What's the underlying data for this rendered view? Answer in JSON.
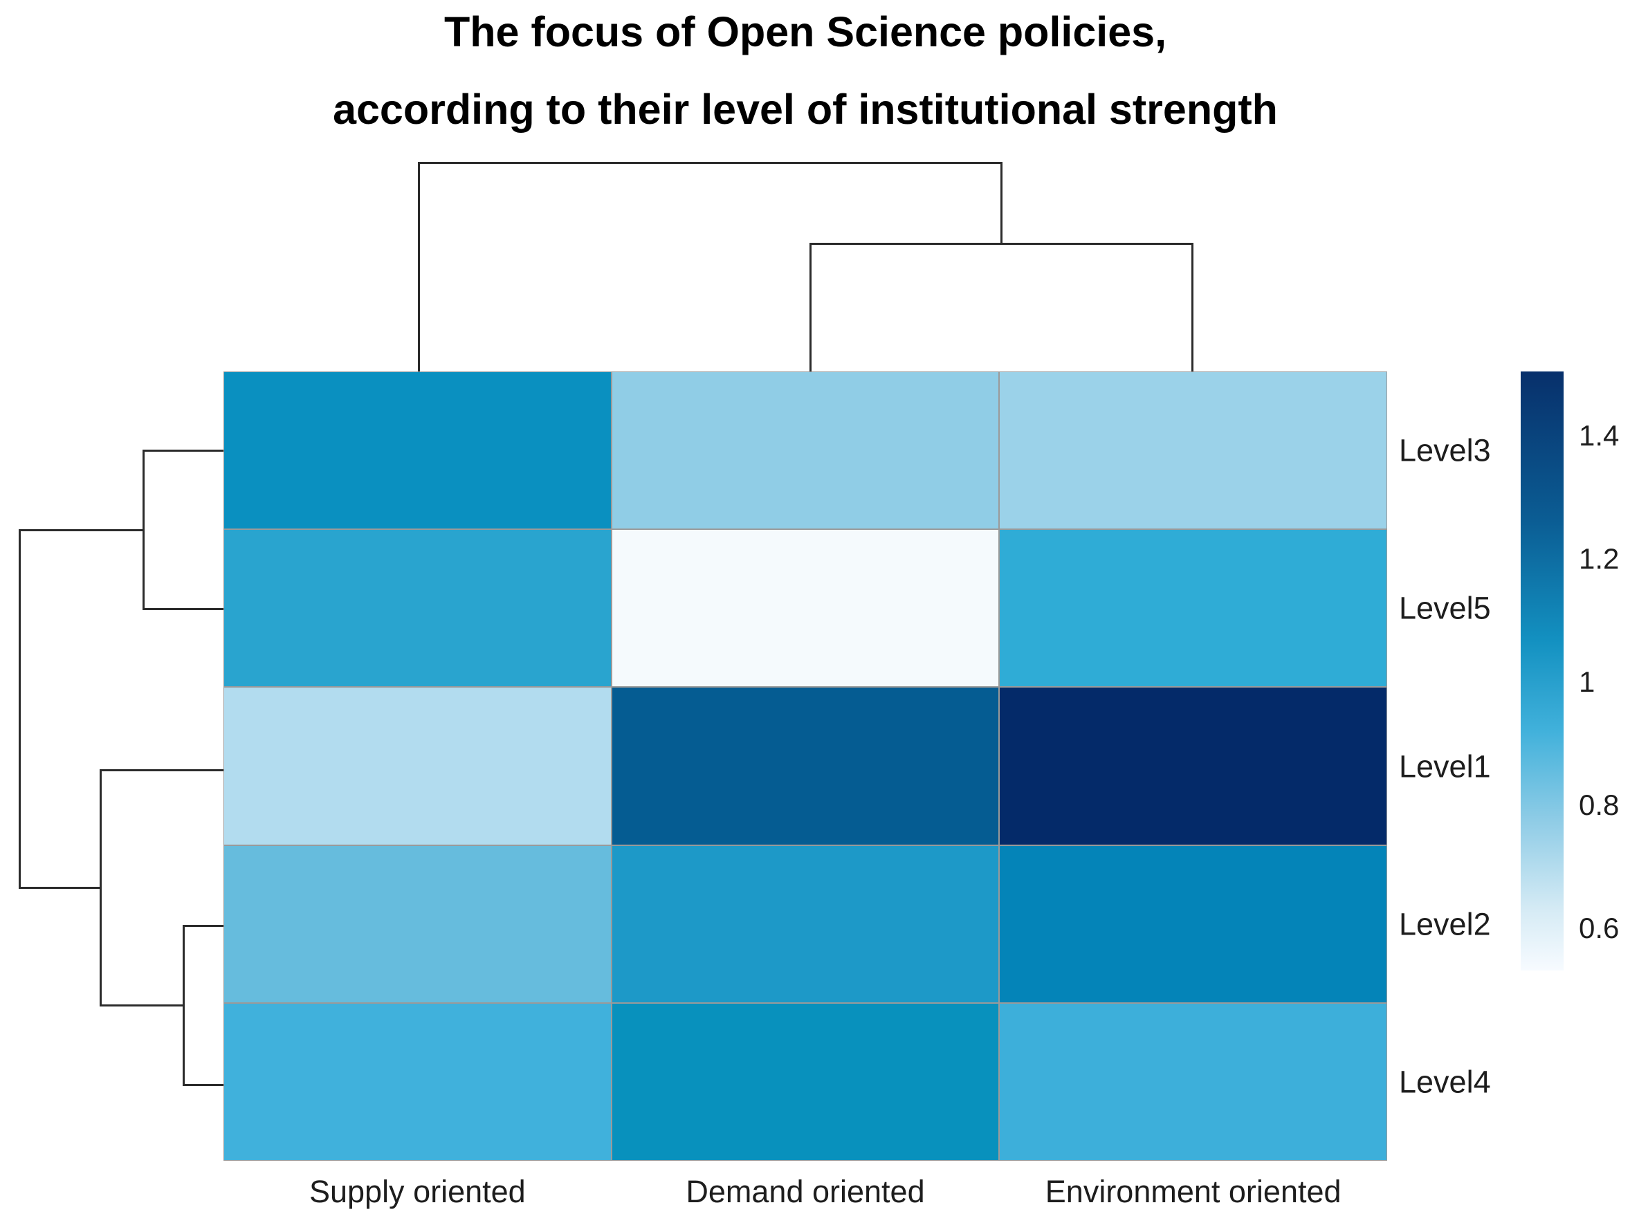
{
  "figure": {
    "title_line1": "The focus of Open Science policies,",
    "title_line2": "according to their level of institutional strength"
  },
  "chart_data": {
    "type": "heatmap",
    "title": "The focus of Open Science policies, according to their level of institutional strength",
    "rows": [
      "Level3",
      "Level5",
      "Level1",
      "Level2",
      "Level4"
    ],
    "columns": [
      "Supply oriented",
      "Demand oriented",
      "Environment oriented"
    ],
    "values_estimated": [
      [
        1.14,
        0.84,
        0.82
      ],
      [
        1.04,
        0.55,
        1.02
      ],
      [
        0.77,
        1.33,
        1.48
      ],
      [
        0.94,
        1.09,
        1.19
      ],
      [
        1.0,
        1.13,
        1.0
      ]
    ],
    "cell_colors": [
      [
        "#0a90c0",
        "#90cde6",
        "#9bd2e9"
      ],
      [
        "#29a4cf",
        "#f5fafd",
        "#2facd6"
      ],
      [
        "#b2dcef",
        "#055c92",
        "#042a69"
      ],
      [
        "#66bcdd",
        "#1d99c8",
        "#0484b8"
      ],
      [
        "#40b1dc",
        "#0891bd",
        "#3dafda"
      ]
    ],
    "legend": {
      "tick_labels": [
        "1.4",
        "1.2",
        "1",
        "0.8",
        "0.6"
      ],
      "tick_values": [
        1.4,
        1.2,
        1.0,
        0.8,
        0.6
      ],
      "range_estimated": [
        0.53,
        1.5
      ],
      "top_color": "#08306b",
      "bottom_color": "#f7fbff",
      "gradient_stops": [
        [
          "0%",
          "#08306b"
        ],
        [
          "25%",
          "#0b5d94"
        ],
        [
          "45%",
          "#1391c1"
        ],
        [
          "60%",
          "#41b1db"
        ],
        [
          "75%",
          "#8fcce6"
        ],
        [
          "90%",
          "#d6ebf5"
        ],
        [
          "100%",
          "#f7fbff"
        ]
      ]
    },
    "clustering": {
      "columns_topology": "(Supply oriented, (Demand oriented, Environment oriented))",
      "rows_topology": "((Level3, Level5), (Level1, (Level2, Level4)))"
    },
    "dendrogram_segments": {
      "top": [
        [
          605,
          235,
          1447,
          235
        ],
        [
          605,
          235,
          605,
          537
        ],
        [
          1447,
          235,
          1447,
          352
        ],
        [
          1171,
          352,
          1723,
          352
        ],
        [
          1171,
          352,
          1171,
          537
        ],
        [
          1723,
          352,
          1723,
          537
        ]
      ],
      "left": [
        [
          207,
          651,
          323,
          651
        ],
        [
          207,
          880,
          323,
          880
        ],
        [
          207,
          651,
          207,
          880
        ],
        [
          28,
          766,
          207,
          766
        ],
        [
          28,
          766,
          28,
          1283
        ],
        [
          28,
          1283,
          145,
          1283
        ],
        [
          145,
          1113,
          145,
          1453
        ],
        [
          145,
          1113,
          323,
          1113
        ],
        [
          145,
          1453,
          265,
          1453
        ],
        [
          265,
          1338,
          265,
          1568
        ],
        [
          265,
          1338,
          323,
          1338
        ],
        [
          265,
          1568,
          323,
          1568
        ]
      ]
    }
  },
  "style": {
    "line_color": "#2b2b2b",
    "grid_color": "#9a9a9a",
    "text_color": "#1d1d1d"
  }
}
